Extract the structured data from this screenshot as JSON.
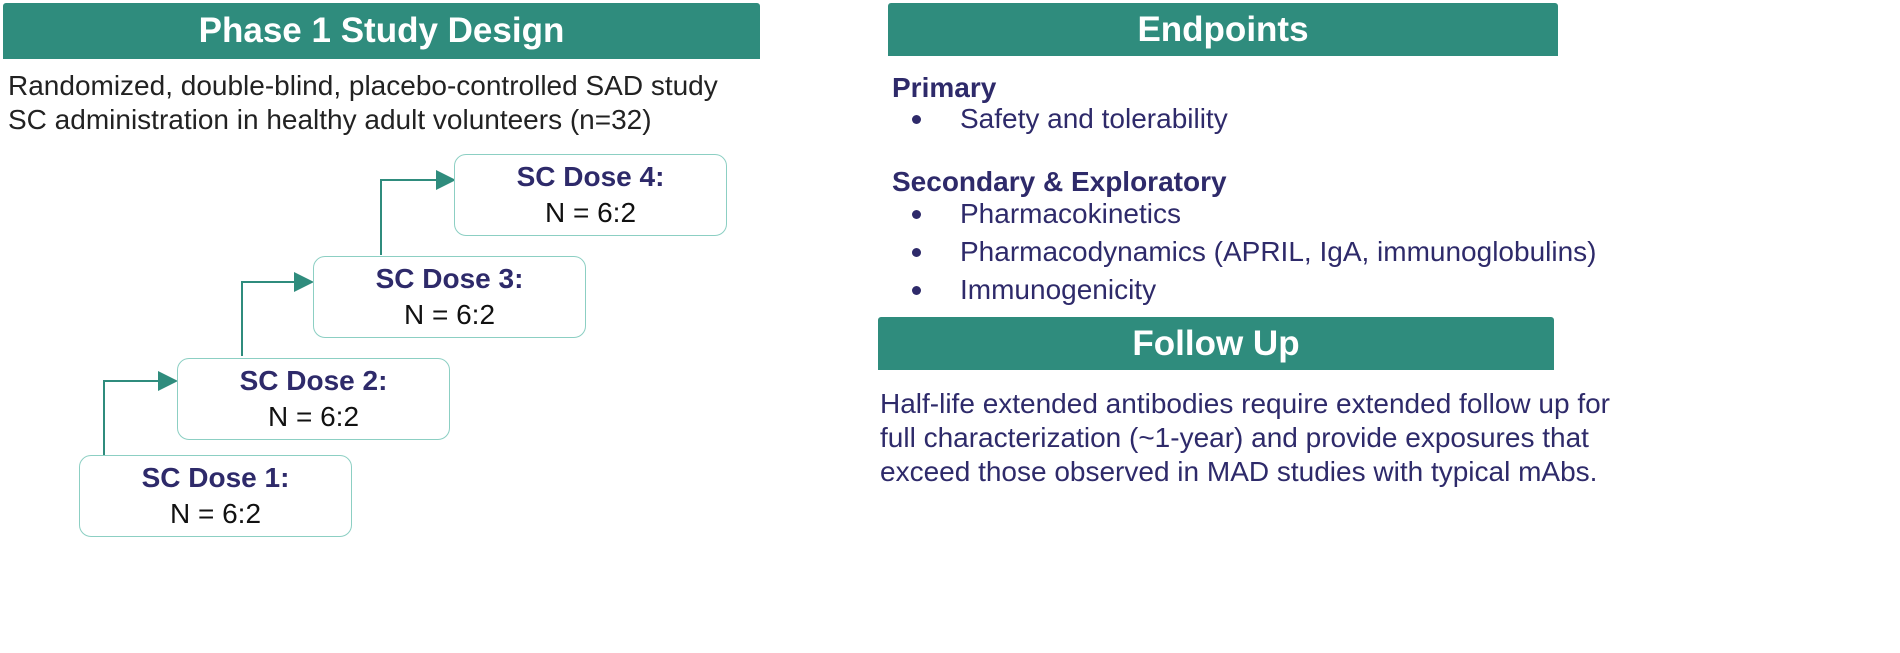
{
  "study_design": {
    "header": "Phase 1 Study Design",
    "line1": "Randomized, double-blind, placebo-controlled SAD study",
    "line2": "SC administration in healthy adult volunteers (n=32)",
    "doses": [
      {
        "title": "SC Dose 1:",
        "n": "N = 6:2"
      },
      {
        "title": "SC Dose 2:",
        "n": "N = 6:2"
      },
      {
        "title": "SC Dose 3:",
        "n": "N = 6:2"
      },
      {
        "title": "SC Dose 4:",
        "n": "N = 6:2"
      }
    ]
  },
  "endpoints": {
    "header": "Endpoints",
    "primary_label": "Primary",
    "primary_items": [
      "Safety and tolerability"
    ],
    "secondary_label": "Secondary & Exploratory",
    "secondary_items": [
      "Pharmacokinetics",
      "Pharmacodynamics (APRIL, IgA, immunoglobulins)",
      "Immunogenicity"
    ]
  },
  "follow_up": {
    "header": "Follow Up",
    "lines": [
      "Half-life extended antibodies require extended follow up for",
      "full characterization (~1-year) and provide exposures that",
      "exceed those observed in MAD studies with typical mAbs."
    ]
  },
  "colors": {
    "header_bg": "#2f8c7d",
    "accent_text": "#2e2a6a",
    "box_border": "#8ccfc3",
    "arrow": "#2f8c7d"
  }
}
